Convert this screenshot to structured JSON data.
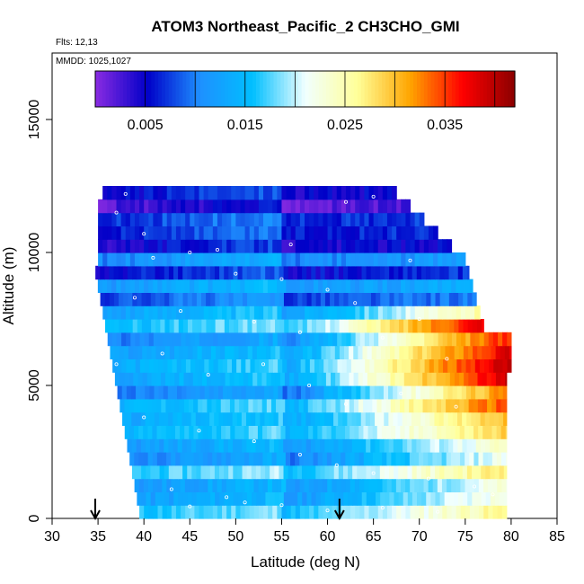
{
  "chart_data": {
    "type": "heatmap",
    "title": "ATOM3 Northeast_Pacific_2 CH3CHO_GMI",
    "flights_label": "Flts: 12,13",
    "dates_label": "MMDD: 1025,1027",
    "xlabel": "Latitude (deg N)",
    "ylabel": "Altitude (m)",
    "xlim": [
      30,
      85
    ],
    "ylim": [
      0,
      17500
    ],
    "x_ticks": [
      "30",
      "35",
      "40",
      "45",
      "50",
      "55",
      "60",
      "65",
      "70",
      "75",
      "80",
      "85"
    ],
    "y_ticks": [
      "0",
      "5000",
      "10000",
      "15000"
    ],
    "colorbar": {
      "min": 0.0,
      "max": 0.042,
      "tick_labels": [
        "0.005",
        "0.015",
        "0.025",
        "0.035"
      ],
      "tick_values": [
        0.005,
        0.015,
        0.025,
        0.035
      ]
    },
    "colors": [
      "#8a2be2",
      "#0000c8",
      "#1e90ff",
      "#00bfff",
      "#f0ffff",
      "#ffff99",
      "#ffa500",
      "#ff0000",
      "#8b0000"
    ],
    "field": {
      "lat_min": 34.5,
      "lat_max": 80,
      "alt_bin_m": 500,
      "coast_lat": 55,
      "altitudes_m": [
        0,
        2500,
        5000,
        7000,
        8000,
        10000,
        12500
      ],
      "values_west": [
        0.014,
        0.012,
        0.01,
        0.012,
        0.01,
        0.006,
        0.002
      ],
      "values_east": [
        0.026,
        0.025,
        0.037,
        0.039,
        0.013,
        0.008,
        0.002
      ]
    },
    "arrows_lat": [
      34.7,
      61.3
    ],
    "points": [
      [
        38,
        12200
      ],
      [
        37,
        11500
      ],
      [
        40,
        10700
      ],
      [
        45,
        10000
      ],
      [
        50,
        9200
      ],
      [
        55,
        9000
      ],
      [
        60,
        8600
      ],
      [
        63,
        8100
      ],
      [
        39,
        8300
      ],
      [
        44,
        7800
      ],
      [
        52,
        7400
      ],
      [
        57,
        7000
      ],
      [
        66,
        6800
      ],
      [
        70,
        7500
      ],
      [
        73,
        6000
      ],
      [
        42,
        6200
      ],
      [
        47,
        5400
      ],
      [
        53,
        5800
      ],
      [
        58,
        5000
      ],
      [
        62,
        4300
      ],
      [
        68,
        4700
      ],
      [
        74,
        4200
      ],
      [
        40,
        3800
      ],
      [
        46,
        3300
      ],
      [
        52,
        2900
      ],
      [
        57,
        2400
      ],
      [
        61,
        2000
      ],
      [
        65,
        1700
      ],
      [
        71,
        1500
      ],
      [
        76,
        1200
      ],
      [
        43,
        1100
      ],
      [
        49,
        800
      ],
      [
        55,
        500
      ],
      [
        60,
        300
      ],
      [
        66,
        400
      ],
      [
        72,
        250
      ],
      [
        78,
        900
      ],
      [
        39,
        250
      ],
      [
        45,
        450
      ],
      [
        51,
        600
      ],
      [
        41,
        9800
      ],
      [
        48,
        10100
      ],
      [
        56,
        10300
      ],
      [
        62,
        11900
      ],
      [
        65,
        12100
      ],
      [
        69,
        9700
      ],
      [
        35,
        7200
      ],
      [
        37,
        5800
      ],
      [
        36,
        3200
      ],
      [
        38,
        1800
      ]
    ]
  }
}
